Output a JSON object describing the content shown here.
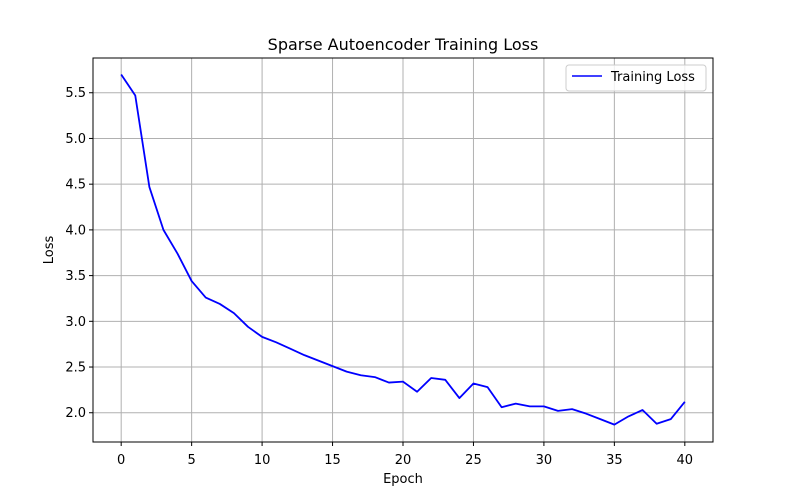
{
  "chart_data": {
    "type": "line",
    "title": "Sparse Autoencoder Training Loss",
    "xlabel": "Epoch",
    "ylabel": "Loss",
    "xlim": [
      -2,
      42
    ],
    "ylim": [
      1.68,
      5.88
    ],
    "xticks": [
      0,
      5,
      10,
      15,
      20,
      25,
      30,
      35,
      40
    ],
    "yticks": [
      2.0,
      2.5,
      3.0,
      3.5,
      4.0,
      4.5,
      5.0,
      5.5
    ],
    "ytick_labels": [
      "2.0",
      "2.5",
      "3.0",
      "3.5",
      "4.0",
      "4.5",
      "5.0",
      "5.5"
    ],
    "grid": true,
    "legend_position": "upper right",
    "series": [
      {
        "name": "Training Loss",
        "color": "#0000ff",
        "x": [
          0,
          1,
          2,
          3,
          4,
          5,
          6,
          7,
          8,
          9,
          10,
          11,
          12,
          13,
          14,
          15,
          16,
          17,
          18,
          19,
          20,
          21,
          22,
          23,
          24,
          25,
          26,
          27,
          28,
          29,
          30,
          31,
          32,
          33,
          34,
          35,
          36,
          37,
          38,
          39,
          40
        ],
        "values": [
          5.7,
          5.47,
          4.47,
          4.0,
          3.74,
          3.44,
          3.26,
          3.19,
          3.09,
          2.94,
          2.83,
          2.77,
          2.7,
          2.63,
          2.57,
          2.51,
          2.45,
          2.41,
          2.39,
          2.33,
          2.34,
          2.23,
          2.38,
          2.36,
          2.16,
          2.32,
          2.28,
          2.06,
          2.1,
          2.07,
          2.07,
          2.02,
          2.04,
          1.99,
          1.93,
          1.87,
          1.96,
          2.03,
          1.88,
          1.93,
          2.12
        ]
      }
    ]
  }
}
